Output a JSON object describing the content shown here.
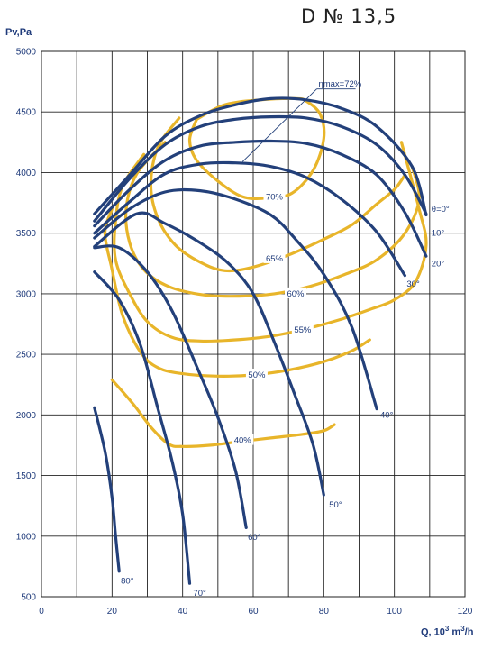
{
  "chart_data": {
    "type": "line",
    "title": "D № 13,5",
    "ylabel": "Pv,Pa",
    "xlabel_main": "Q, 10",
    "xlabel_sup1": "3",
    "xlabel_m": " m",
    "xlabel_sup2": "3",
    "xlabel_tail": "/h",
    "xlim": [
      0,
      120
    ],
    "ylim": [
      500,
      5000
    ],
    "x_ticks": [
      0,
      20,
      40,
      60,
      80,
      100,
      120
    ],
    "y_ticks": [
      500,
      1000,
      1500,
      2000,
      2500,
      3000,
      3500,
      4000,
      4500,
      5000
    ],
    "x_grid": [
      10,
      20,
      30,
      40,
      50,
      60,
      70,
      80,
      90,
      100,
      110
    ],
    "grid": true,
    "colors": {
      "angle_curve": "#23407a",
      "efficiency_curve": "#e8b52a",
      "grid": "#222222"
    },
    "angle_curves": [
      {
        "label": "θ=0°",
        "points": [
          [
            15,
            3660
          ],
          [
            25,
            3980
          ],
          [
            35,
            4300
          ],
          [
            45,
            4470
          ],
          [
            55,
            4560
          ],
          [
            65,
            4610
          ],
          [
            75,
            4600
          ],
          [
            85,
            4530
          ],
          [
            95,
            4380
          ],
          [
            105,
            4050
          ],
          [
            109,
            3650
          ]
        ]
      },
      {
        "label": "10°",
        "points": [
          [
            15,
            3600
          ],
          [
            25,
            3950
          ],
          [
            35,
            4230
          ],
          [
            45,
            4380
          ],
          [
            55,
            4440
          ],
          [
            65,
            4460
          ],
          [
            75,
            4450
          ],
          [
            85,
            4380
          ],
          [
            95,
            4230
          ],
          [
            103,
            3980
          ],
          [
            109,
            3660
          ]
        ]
      },
      {
        "label": "20°",
        "points": [
          [
            15,
            3560
          ],
          [
            25,
            3860
          ],
          [
            35,
            4100
          ],
          [
            45,
            4220
          ],
          [
            55,
            4250
          ],
          [
            65,
            4260
          ],
          [
            75,
            4240
          ],
          [
            85,
            4150
          ],
          [
            95,
            3980
          ],
          [
            103,
            3670
          ],
          [
            109,
            3310
          ]
        ]
      },
      {
        "label": "30°",
        "points": [
          [
            15,
            3500
          ],
          [
            25,
            3760
          ],
          [
            35,
            3990
          ],
          [
            45,
            4070
          ],
          [
            55,
            4080
          ],
          [
            65,
            4050
          ],
          [
            75,
            3960
          ],
          [
            85,
            3780
          ],
          [
            95,
            3510
          ],
          [
            103,
            3150
          ]
        ]
      },
      {
        "label": "40°",
        "points": [
          [
            15,
            3460
          ],
          [
            25,
            3700
          ],
          [
            35,
            3840
          ],
          [
            45,
            3850
          ],
          [
            55,
            3780
          ],
          [
            65,
            3650
          ],
          [
            72,
            3450
          ],
          [
            80,
            3160
          ],
          [
            88,
            2720
          ],
          [
            95,
            2050
          ]
        ]
      },
      {
        "label": "50°",
        "points": [
          [
            15,
            3390
          ],
          [
            27,
            3660
          ],
          [
            35,
            3580
          ],
          [
            45,
            3420
          ],
          [
            53,
            3250
          ],
          [
            60,
            3000
          ],
          [
            66,
            2600
          ],
          [
            72,
            2150
          ],
          [
            77,
            1750
          ],
          [
            80,
            1340
          ]
        ]
      },
      {
        "label": "60°",
        "points": [
          [
            15,
            3380
          ],
          [
            22,
            3380
          ],
          [
            30,
            3180
          ],
          [
            37,
            2860
          ],
          [
            44,
            2400
          ],
          [
            50,
            1980
          ],
          [
            55,
            1540
          ],
          [
            58,
            1070
          ]
        ]
      },
      {
        "label": "70°",
        "points": [
          [
            15,
            3180
          ],
          [
            22,
            2950
          ],
          [
            28,
            2580
          ],
          [
            33,
            2050
          ],
          [
            37,
            1620
          ],
          [
            40,
            1180
          ],
          [
            42,
            610
          ]
        ]
      },
      {
        "label": "80°",
        "points": [
          [
            15,
            2060
          ],
          [
            18,
            1700
          ],
          [
            20,
            1320
          ],
          [
            21,
            1000
          ],
          [
            22,
            710
          ]
        ]
      }
    ],
    "efficiency_curves": [
      {
        "label": "ηmax=72%",
        "closed": false,
        "points": [
          [
            42,
            4460
          ],
          [
            47,
            4480
          ],
          [
            52,
            4500
          ],
          [
            60,
            4560
          ],
          [
            70,
            4600
          ],
          [
            78,
            4580
          ],
          [
            85,
            4550
          ]
        ]
      },
      {
        "label": "70%",
        "closed": true,
        "points": [
          [
            44,
            4440
          ],
          [
            52,
            4560
          ],
          [
            62,
            4600
          ],
          [
            72,
            4610
          ],
          [
            75,
            4590
          ],
          [
            79,
            4480
          ],
          [
            80,
            4280
          ],
          [
            77,
            4020
          ],
          [
            71,
            3830
          ],
          [
            64,
            3790
          ],
          [
            57,
            3800
          ],
          [
            50,
            3930
          ],
          [
            44,
            4100
          ],
          [
            42,
            4270
          ],
          [
            44,
            4440
          ]
        ]
      },
      {
        "label": "65%",
        "closed": false,
        "points": [
          [
            39,
            4450
          ],
          [
            33,
            4210
          ],
          [
            31,
            3900
          ],
          [
            33,
            3620
          ],
          [
            38,
            3400
          ],
          [
            45,
            3260
          ],
          [
            52,
            3190
          ],
          [
            60,
            3220
          ],
          [
            70,
            3320
          ],
          [
            80,
            3450
          ],
          [
            88,
            3570
          ],
          [
            95,
            3740
          ],
          [
            100,
            3860
          ],
          [
            103,
            3980
          ]
        ]
      },
      {
        "label": "60%",
        "closed": false,
        "points": [
          [
            35,
            4250
          ],
          [
            27,
            3990
          ],
          [
            24,
            3700
          ],
          [
            25,
            3420
          ],
          [
            29,
            3200
          ],
          [
            36,
            3060
          ],
          [
            46,
            2990
          ],
          [
            56,
            2980
          ],
          [
            66,
            3000
          ],
          [
            76,
            3060
          ],
          [
            86,
            3160
          ],
          [
            95,
            3280
          ],
          [
            103,
            3500
          ],
          [
            107,
            3780
          ],
          [
            105,
            4050
          ]
        ]
      },
      {
        "label": "55%",
        "closed": false,
        "points": [
          [
            29,
            4150
          ],
          [
            23,
            3890
          ],
          [
            21,
            3600
          ],
          [
            21,
            3280
          ],
          [
            25,
            3000
          ],
          [
            30,
            2770
          ],
          [
            37,
            2640
          ],
          [
            45,
            2610
          ],
          [
            55,
            2620
          ],
          [
            65,
            2650
          ],
          [
            75,
            2710
          ],
          [
            85,
            2790
          ],
          [
            93,
            2870
          ],
          [
            100,
            2950
          ],
          [
            106,
            3100
          ],
          [
            109,
            3400
          ],
          [
            107,
            3700
          ],
          [
            102,
            4250
          ]
        ]
      },
      {
        "label": "50%",
        "closed": false,
        "points": [
          [
            20,
            3700
          ],
          [
            18,
            3500
          ],
          [
            20,
            3200
          ],
          [
            23,
            2820
          ],
          [
            28,
            2520
          ],
          [
            33,
            2390
          ],
          [
            40,
            2340
          ],
          [
            50,
            2320
          ],
          [
            60,
            2330
          ],
          [
            70,
            2370
          ],
          [
            80,
            2440
          ],
          [
            88,
            2530
          ],
          [
            93,
            2620
          ]
        ]
      },
      {
        "label": "40%",
        "closed": false,
        "points": [
          [
            20,
            2290
          ],
          [
            26,
            2090
          ],
          [
            31,
            1900
          ],
          [
            36,
            1760
          ],
          [
            40,
            1740
          ],
          [
            48,
            1750
          ],
          [
            56,
            1780
          ],
          [
            65,
            1810
          ],
          [
            74,
            1840
          ],
          [
            80,
            1870
          ],
          [
            83,
            1920
          ]
        ]
      }
    ]
  }
}
